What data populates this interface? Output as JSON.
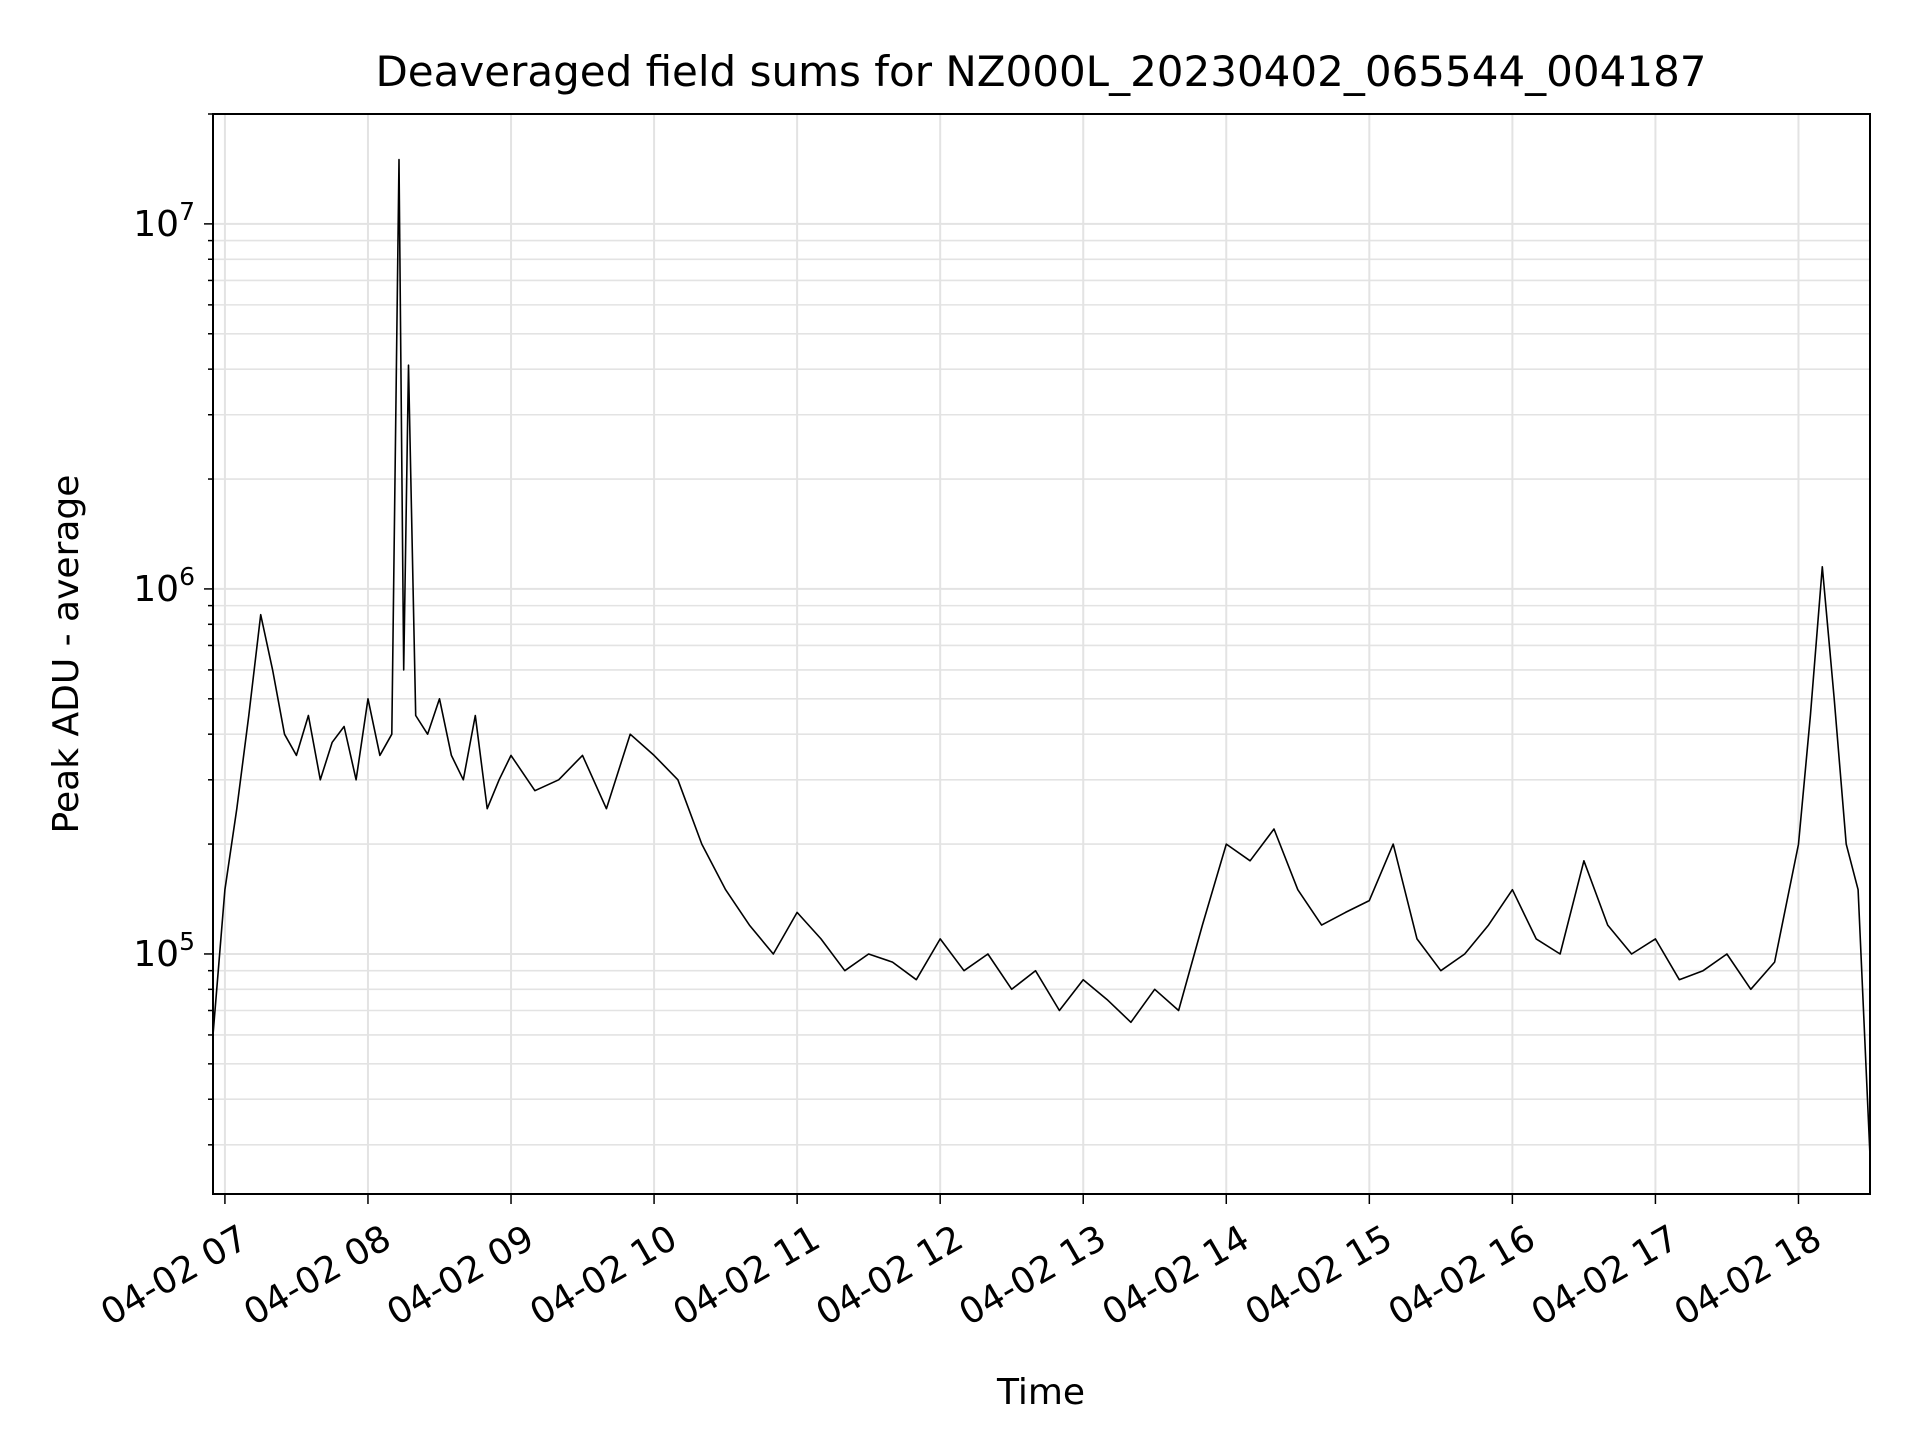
{
  "chart_data": {
    "type": "line",
    "title": "Deaveraged field sums for NZ000L_20230402_065544_004187",
    "xlabel": "Time",
    "ylabel": "Peak ADU - average",
    "yscale": "log",
    "ylim": [
      22000,
      20000000
    ],
    "xlim": [
      "04-02 06:55",
      "04-02 18:30"
    ],
    "grid": true,
    "x_ticks": [
      {
        "value": "04-02 07:00",
        "label": "04-02 07"
      },
      {
        "value": "04-02 08:00",
        "label": "04-02 08"
      },
      {
        "value": "04-02 09:00",
        "label": "04-02 09"
      },
      {
        "value": "04-02 10:00",
        "label": "04-02 10"
      },
      {
        "value": "04-02 11:00",
        "label": "04-02 11"
      },
      {
        "value": "04-02 12:00",
        "label": "04-02 12"
      },
      {
        "value": "04-02 13:00",
        "label": "04-02 13"
      },
      {
        "value": "04-02 14:00",
        "label": "04-02 14"
      },
      {
        "value": "04-02 15:00",
        "label": "04-02 15"
      },
      {
        "value": "04-02 16:00",
        "label": "04-02 16"
      },
      {
        "value": "04-02 17:00",
        "label": "04-02 17"
      },
      {
        "value": "04-02 18:00",
        "label": "04-02 18"
      }
    ],
    "y_ticks": [
      {
        "value": 100000,
        "base": "10",
        "exp": "5"
      },
      {
        "value": 1000000,
        "base": "10",
        "exp": "6"
      },
      {
        "value": 10000000,
        "base": "10",
        "exp": "7"
      }
    ],
    "series": [
      {
        "color": "#000000",
        "x": [
          "04-02 06:55",
          "04-02 07:00",
          "04-02 07:05",
          "04-02 07:10",
          "04-02 07:15",
          "04-02 07:20",
          "04-02 07:25",
          "04-02 07:30",
          "04-02 07:35",
          "04-02 07:40",
          "04-02 07:45",
          "04-02 07:50",
          "04-02 07:55",
          "04-02 08:00",
          "04-02 08:05",
          "04-02 08:10",
          "04-02 08:13",
          "04-02 08:15",
          "04-02 08:17",
          "04-02 08:20",
          "04-02 08:25",
          "04-02 08:30",
          "04-02 08:35",
          "04-02 08:40",
          "04-02 08:45",
          "04-02 08:50",
          "04-02 08:55",
          "04-02 09:00",
          "04-02 09:10",
          "04-02 09:20",
          "04-02 09:30",
          "04-02 09:40",
          "04-02 09:50",
          "04-02 10:00",
          "04-02 10:10",
          "04-02 10:20",
          "04-02 10:30",
          "04-02 10:40",
          "04-02 10:50",
          "04-02 11:00",
          "04-02 11:10",
          "04-02 11:20",
          "04-02 11:30",
          "04-02 11:40",
          "04-02 11:50",
          "04-02 12:00",
          "04-02 12:10",
          "04-02 12:20",
          "04-02 12:30",
          "04-02 12:40",
          "04-02 12:50",
          "04-02 13:00",
          "04-02 13:10",
          "04-02 13:20",
          "04-02 13:30",
          "04-02 13:40",
          "04-02 13:50",
          "04-02 14:00",
          "04-02 14:10",
          "04-02 14:20",
          "04-02 14:30",
          "04-02 14:40",
          "04-02 14:50",
          "04-02 15:00",
          "04-02 15:10",
          "04-02 15:20",
          "04-02 15:30",
          "04-02 15:40",
          "04-02 15:50",
          "04-02 16:00",
          "04-02 16:10",
          "04-02 16:20",
          "04-02 16:30",
          "04-02 16:40",
          "04-02 16:50",
          "04-02 17:00",
          "04-02 17:10",
          "04-02 17:20",
          "04-02 17:30",
          "04-02 17:40",
          "04-02 17:50",
          "04-02 18:00",
          "04-02 18:05",
          "04-02 18:10",
          "04-02 18:15",
          "04-02 18:20",
          "04-02 18:25",
          "04-02 18:30"
        ],
        "y": [
          60000,
          150000,
          250000,
          450000,
          850000,
          600000,
          400000,
          350000,
          450000,
          300000,
          380000,
          420000,
          300000,
          500000,
          350000,
          400000,
          15000000,
          600000,
          4100000,
          450000,
          400000,
          500000,
          350000,
          300000,
          450000,
          250000,
          300000,
          350000,
          280000,
          300000,
          350000,
          250000,
          400000,
          350000,
          300000,
          200000,
          150000,
          120000,
          100000,
          130000,
          110000,
          90000,
          100000,
          95000,
          85000,
          110000,
          90000,
          100000,
          80000,
          90000,
          70000,
          85000,
          75000,
          65000,
          80000,
          70000,
          120000,
          200000,
          180000,
          220000,
          150000,
          120000,
          130000,
          140000,
          200000,
          110000,
          90000,
          100000,
          120000,
          150000,
          110000,
          100000,
          180000,
          120000,
          100000,
          110000,
          85000,
          90000,
          100000,
          80000,
          95000,
          200000,
          450000,
          1150000,
          500000,
          200000,
          150000,
          28000
        ]
      }
    ]
  }
}
